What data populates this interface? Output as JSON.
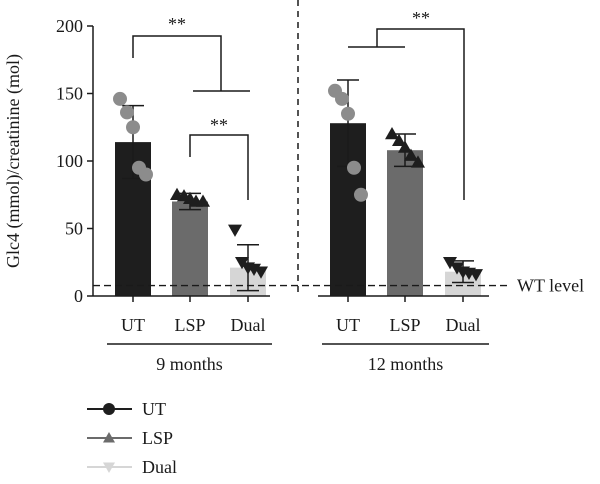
{
  "chart_data": {
    "type": "bar",
    "ylabel": "Glc4 (mmol)/creatinine (mol)",
    "ylim": [
      0,
      200
    ],
    "yticks": [
      0,
      50,
      100,
      150,
      200
    ],
    "groups": [
      {
        "label": "9 months",
        "categories": [
          "UT",
          "LSP",
          "Dual"
        ],
        "means": [
          114,
          70,
          21
        ],
        "errors": [
          27,
          6,
          17
        ],
        "points": [
          [
            146,
            136,
            125,
            95,
            90
          ],
          [
            75,
            74,
            72,
            70,
            70
          ],
          [
            49,
            25,
            21,
            20,
            18
          ]
        ],
        "significance": [
          {
            "text": "**",
            "comparison": "UT vs LSP+Dual"
          },
          {
            "text": "**",
            "comparison": "LSP vs Dual"
          }
        ]
      },
      {
        "label": "12 months",
        "categories": [
          "UT",
          "LSP",
          "Dual"
        ],
        "means": [
          128,
          108,
          18
        ],
        "errors": [
          32,
          12,
          8
        ],
        "points": [
          [
            152,
            146,
            135,
            95,
            75
          ],
          [
            120,
            115,
            110,
            104,
            99
          ],
          [
            25,
            21,
            18,
            17,
            16
          ]
        ],
        "significance": [
          {
            "text": "**",
            "comparison": "UT+LSP vs Dual"
          }
        ]
      }
    ],
    "reference_line": {
      "label": "WT level",
      "value": 7
    },
    "series": [
      {
        "name": "UT",
        "bar_color": "#1e1e1e",
        "marker": "circle",
        "marker_color": "#8c8c8c"
      },
      {
        "name": "LSP",
        "bar_color": "#6b6b6b",
        "marker": "triangle-up",
        "marker_color": "#1e1e1e"
      },
      {
        "name": "Dual",
        "bar_color": "#d6d6d6",
        "marker": "triangle-down",
        "marker_color": "#1e1e1e"
      }
    ],
    "legend_position": "bottom-left"
  }
}
